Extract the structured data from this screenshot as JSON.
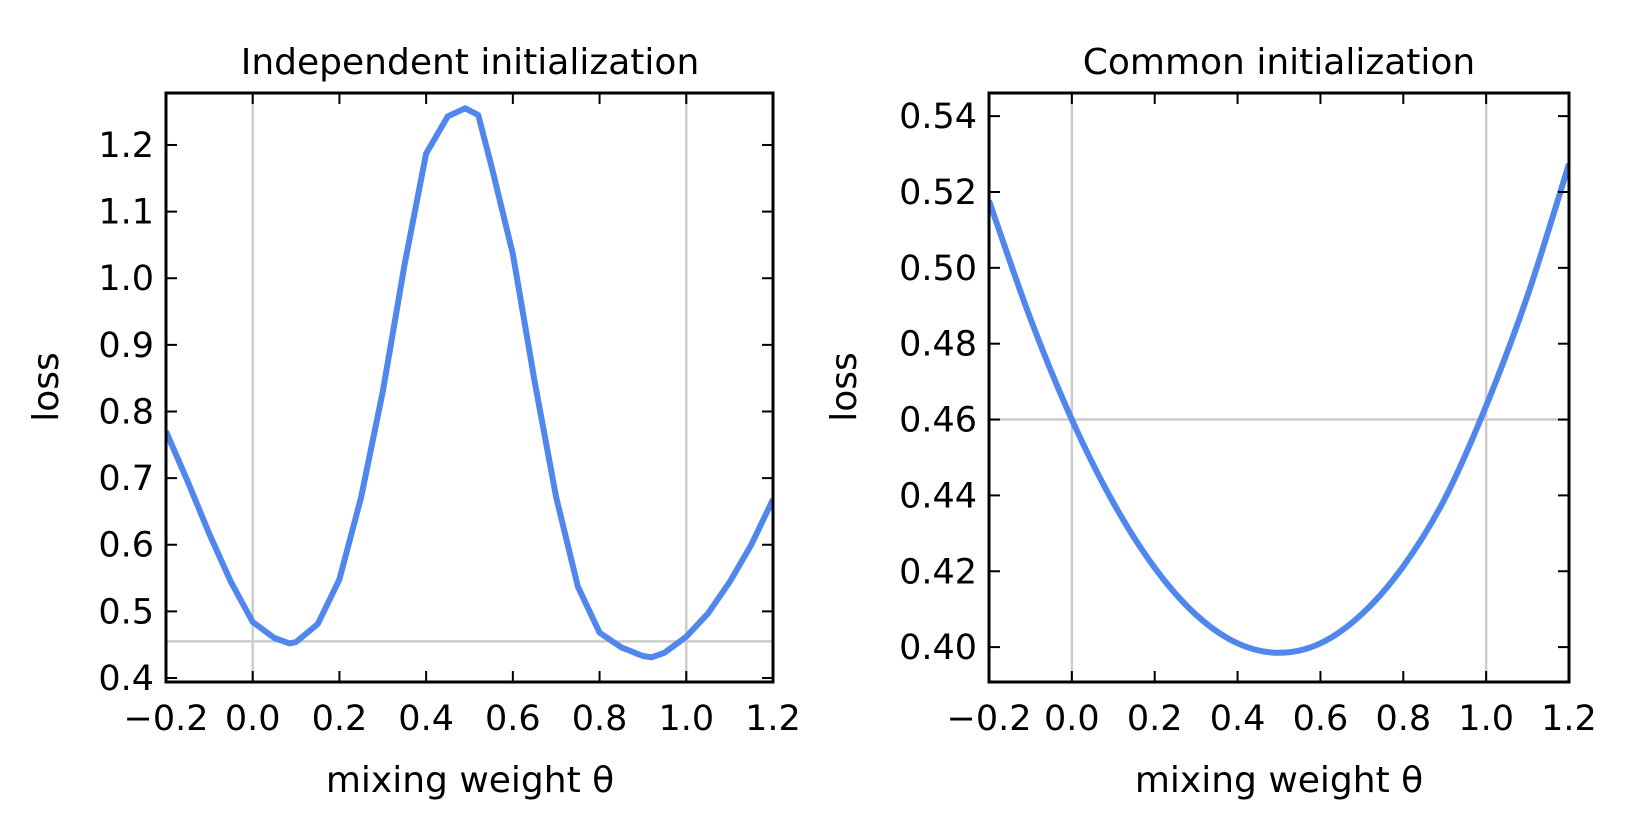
{
  "chart_data": [
    {
      "type": "line",
      "title": "Independent initialization",
      "xlabel": "mixing weight θ",
      "ylabel": "loss",
      "xlim": [
        -0.2,
        1.2
      ],
      "ylim": [
        0.394,
        1.278
      ],
      "xticks": [
        "−0.2",
        "0.0",
        "0.2",
        "0.4",
        "0.6",
        "0.8",
        "1.0",
        "1.2"
      ],
      "xtick_values": [
        -0.2,
        0.0,
        0.2,
        0.4,
        0.6,
        0.8,
        1.0,
        1.2
      ],
      "yticks": [
        "0.4",
        "0.5",
        "0.6",
        "0.7",
        "0.8",
        "0.9",
        "1.0",
        "1.1",
        "1.2"
      ],
      "ytick_values": [
        0.4,
        0.5,
        0.6,
        0.7,
        0.8,
        0.9,
        1.0,
        1.1,
        1.2
      ],
      "reference_lines": {
        "vertical": [
          0.0,
          1.0
        ],
        "horizontal": [
          0.455
        ]
      },
      "grid": false,
      "color": "#5087EC",
      "reference_color": "#cccccc",
      "x": [
        -0.2,
        -0.15,
        -0.1,
        -0.05,
        0,
        0.05,
        0.085,
        0.1,
        0.15,
        0.2,
        0.25,
        0.3,
        0.35,
        0.4,
        0.45,
        0.49,
        0.52,
        0.55,
        0.6,
        0.65,
        0.7,
        0.75,
        0.8,
        0.85,
        0.9,
        0.92,
        0.95,
        1.0,
        1.05,
        1.1,
        1.15,
        1.2
      ],
      "y": [
        0.77,
        0.695,
        0.616,
        0.544,
        0.484,
        0.46,
        0.452,
        0.454,
        0.481,
        0.548,
        0.671,
        0.83,
        1.02,
        1.187,
        1.243,
        1.255,
        1.245,
        1.17,
        1.036,
        0.846,
        0.671,
        0.537,
        0.468,
        0.446,
        0.433,
        0.431,
        0.438,
        0.462,
        0.497,
        0.544,
        0.6,
        0.668
      ]
    },
    {
      "type": "line",
      "title": "Common initialization",
      "xlabel": "mixing weight θ",
      "ylabel": "loss",
      "xlim": [
        -0.2,
        1.2
      ],
      "ylim": [
        0.3908,
        0.5461
      ],
      "xticks": [
        "−0.2",
        "0.0",
        "0.2",
        "0.4",
        "0.6",
        "0.8",
        "1.0",
        "1.2"
      ],
      "xtick_values": [
        -0.2,
        0.0,
        0.2,
        0.4,
        0.6,
        0.8,
        1.0,
        1.2
      ],
      "yticks": [
        "0.40",
        "0.42",
        "0.44",
        "0.46",
        "0.48",
        "0.50",
        "0.52",
        "0.54"
      ],
      "ytick_values": [
        0.4,
        0.42,
        0.44,
        0.46,
        0.48,
        0.5,
        0.52,
        0.54
      ],
      "reference_lines": {
        "vertical": [
          0.0,
          1.0
        ],
        "horizontal": [
          0.46
        ]
      },
      "grid": false,
      "color": "#5087EC",
      "reference_color": "#cccccc",
      "x": [
        -0.2,
        -0.1,
        0,
        0.1,
        0.2,
        0.3,
        0.4,
        0.5,
        0.6,
        0.7,
        0.8,
        0.9,
        1.0,
        1.1,
        1.2
      ],
      "y": [
        0.5177,
        0.4866,
        0.46,
        0.4381,
        0.4209,
        0.4085,
        0.401,
        0.3985,
        0.401,
        0.4087,
        0.4213,
        0.4391,
        0.4636,
        0.4927,
        0.5274
      ]
    }
  ]
}
